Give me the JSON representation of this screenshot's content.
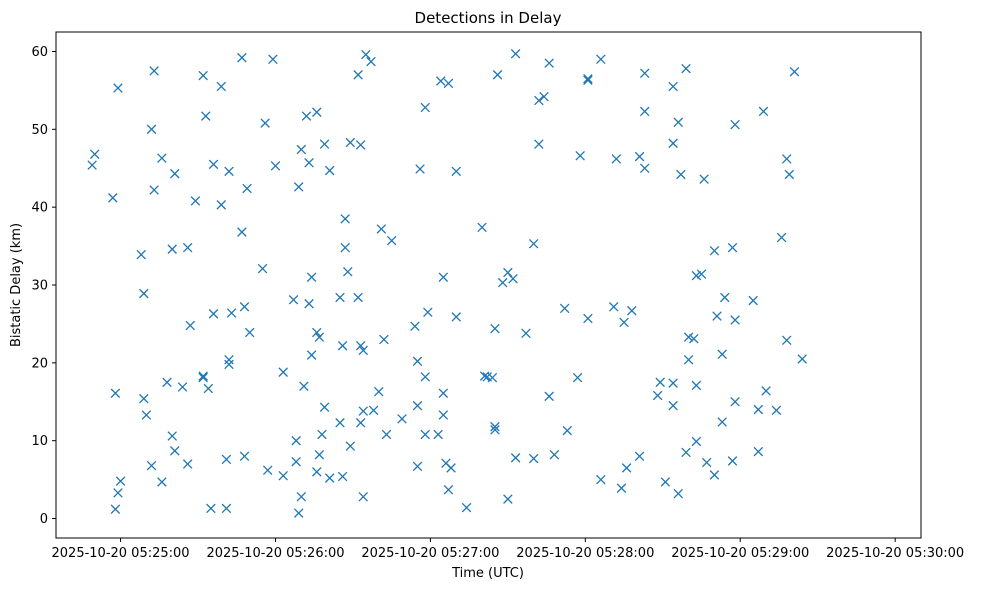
{
  "chart_data": {
    "type": "scatter",
    "title": "Detections in Delay",
    "xlabel": "Time (UTC)",
    "ylabel": "Bistatic Delay (km)",
    "x_unit": "time of day, 2025-10-20, UTC",
    "xlim": [
      "05:24:35",
      "05:30:10"
    ],
    "ylim": [
      -2.5,
      62.5
    ],
    "x_ticks": [
      {
        "t": "05:25:00",
        "label": "2025-10-20 05:25:00"
      },
      {
        "t": "05:26:00",
        "label": "2025-10-20 05:26:00"
      },
      {
        "t": "05:27:00",
        "label": "2025-10-20 05:27:00"
      },
      {
        "t": "05:28:00",
        "label": "2025-10-20 05:28:00"
      },
      {
        "t": "05:29:00",
        "label": "2025-10-20 05:29:00"
      },
      {
        "t": "05:30:00",
        "label": "2025-10-20 05:30:00"
      }
    ],
    "y_ticks": [
      0,
      10,
      20,
      30,
      40,
      50,
      60
    ],
    "grid": false,
    "marker": "x",
    "color": "#1f77b4",
    "points": [
      [
        "05:24:49",
        45.4
      ],
      [
        "05:24:50",
        46.8
      ],
      [
        "05:24:57",
        41.2
      ],
      [
        "05:24:58",
        16.1
      ],
      [
        "05:24:58",
        1.2
      ],
      [
        "05:24:59",
        3.3
      ],
      [
        "05:24:59",
        55.3
      ],
      [
        "05:25:00",
        4.8
      ],
      [
        "05:25:08",
        33.9
      ],
      [
        "05:25:09",
        28.9
      ],
      [
        "05:25:09",
        15.4
      ],
      [
        "05:25:10",
        13.3
      ],
      [
        "05:25:12",
        6.8
      ],
      [
        "05:25:12",
        50.0
      ],
      [
        "05:25:13",
        57.5
      ],
      [
        "05:25:13",
        42.2
      ],
      [
        "05:25:16",
        4.7
      ],
      [
        "05:25:16",
        46.3
      ],
      [
        "05:25:18",
        17.5
      ],
      [
        "05:25:20",
        10.6
      ],
      [
        "05:25:20",
        34.6
      ],
      [
        "05:25:21",
        8.7
      ],
      [
        "05:25:21",
        44.3
      ],
      [
        "05:25:24",
        16.9
      ],
      [
        "05:25:26",
        34.8
      ],
      [
        "05:25:26",
        7.0
      ],
      [
        "05:25:27",
        24.8
      ],
      [
        "05:25:29",
        40.8
      ],
      [
        "05:25:32",
        18.1
      ],
      [
        "05:25:32",
        18.3
      ],
      [
        "05:25:32",
        56.9
      ],
      [
        "05:25:33",
        51.7
      ],
      [
        "05:25:34",
        16.7
      ],
      [
        "05:25:35",
        1.3
      ],
      [
        "05:25:36",
        26.3
      ],
      [
        "05:25:36",
        45.5
      ],
      [
        "05:25:39",
        55.5
      ],
      [
        "05:25:39",
        40.3
      ],
      [
        "05:25:41",
        7.6
      ],
      [
        "05:25:41",
        1.3
      ],
      [
        "05:25:42",
        20.4
      ],
      [
        "05:25:42",
        19.8
      ],
      [
        "05:25:42",
        44.6
      ],
      [
        "05:25:43",
        26.4
      ],
      [
        "05:25:47",
        59.2
      ],
      [
        "05:25:47",
        36.8
      ],
      [
        "05:25:48",
        27.2
      ],
      [
        "05:25:48",
        8.0
      ],
      [
        "05:25:49",
        42.4
      ],
      [
        "05:25:50",
        23.9
      ],
      [
        "05:25:55",
        32.1
      ],
      [
        "05:25:56",
        50.8
      ],
      [
        "05:25:57",
        6.2
      ],
      [
        "05:25:59",
        59.0
      ],
      [
        "05:26:00",
        45.3
      ],
      [
        "05:26:03",
        5.5
      ],
      [
        "05:26:03",
        18.8
      ],
      [
        "05:26:07",
        28.1
      ],
      [
        "05:26:08",
        7.3
      ],
      [
        "05:26:08",
        10.0
      ],
      [
        "05:26:09",
        42.6
      ],
      [
        "05:26:09",
        0.7
      ],
      [
        "05:26:10",
        47.4
      ],
      [
        "05:26:10",
        2.8
      ],
      [
        "05:26:11",
        17.0
      ],
      [
        "05:26:12",
        51.7
      ],
      [
        "05:26:13",
        45.7
      ],
      [
        "05:26:13",
        27.6
      ],
      [
        "05:26:14",
        21.0
      ],
      [
        "05:26:14",
        31.0
      ],
      [
        "05:26:16",
        52.2
      ],
      [
        "05:26:16",
        6.0
      ],
      [
        "05:26:16",
        23.9
      ],
      [
        "05:26:17",
        8.2
      ],
      [
        "05:26:17",
        23.3
      ],
      [
        "05:26:18",
        10.8
      ],
      [
        "05:26:19",
        48.1
      ],
      [
        "05:26:19",
        14.3
      ],
      [
        "05:26:21",
        5.2
      ],
      [
        "05:26:21",
        44.7
      ],
      [
        "05:26:25",
        28.4
      ],
      [
        "05:26:25",
        12.3
      ],
      [
        "05:26:26",
        5.4
      ],
      [
        "05:26:26",
        22.2
      ],
      [
        "05:26:27",
        38.5
      ],
      [
        "05:26:27",
        34.8
      ],
      [
        "05:26:28",
        31.7
      ],
      [
        "05:26:29",
        48.3
      ],
      [
        "05:26:29",
        9.3
      ],
      [
        "05:26:32",
        28.4
      ],
      [
        "05:26:32",
        57.0
      ],
      [
        "05:26:33",
        48.0
      ],
      [
        "05:26:33",
        12.3
      ],
      [
        "05:26:33",
        22.2
      ],
      [
        "05:26:34",
        21.6
      ],
      [
        "05:26:34",
        2.8
      ],
      [
        "05:26:34",
        13.8
      ],
      [
        "05:26:35",
        59.6
      ],
      [
        "05:26:37",
        58.7
      ],
      [
        "05:26:38",
        13.9
      ],
      [
        "05:26:40",
        16.3
      ],
      [
        "05:26:41",
        37.2
      ],
      [
        "05:26:42",
        23.0
      ],
      [
        "05:26:43",
        10.8
      ],
      [
        "05:26:45",
        35.7
      ],
      [
        "05:26:49",
        12.8
      ],
      [
        "05:26:54",
        24.7
      ],
      [
        "05:26:55",
        6.7
      ],
      [
        "05:26:55",
        14.5
      ],
      [
        "05:26:55",
        20.2
      ],
      [
        "05:26:56",
        44.9
      ],
      [
        "05:26:58",
        18.2
      ],
      [
        "05:26:58",
        52.8
      ],
      [
        "05:26:58",
        10.8
      ],
      [
        "05:26:59",
        26.5
      ],
      [
        "05:27:03",
        10.8
      ],
      [
        "05:27:04",
        56.2
      ],
      [
        "05:27:05",
        31.0
      ],
      [
        "05:27:05",
        13.3
      ],
      [
        "05:27:05",
        16.1
      ],
      [
        "05:27:06",
        7.1
      ],
      [
        "05:27:07",
        3.7
      ],
      [
        "05:27:07",
        55.9
      ],
      [
        "05:27:08",
        6.5
      ],
      [
        "05:27:10",
        25.9
      ],
      [
        "05:27:10",
        44.6
      ],
      [
        "05:27:14",
        1.4
      ],
      [
        "05:27:20",
        37.4
      ],
      [
        "05:27:21",
        18.3
      ],
      [
        "05:27:22",
        18.2
      ],
      [
        "05:27:24",
        18.1
      ],
      [
        "05:27:25",
        11.4
      ],
      [
        "05:27:25",
        11.8
      ],
      [
        "05:27:25",
        24.4
      ],
      [
        "05:27:26",
        57.0
      ],
      [
        "05:27:28",
        30.3
      ],
      [
        "05:27:30",
        31.6
      ],
      [
        "05:27:30",
        2.5
      ],
      [
        "05:27:32",
        30.8
      ],
      [
        "05:27:33",
        59.7
      ],
      [
        "05:27:33",
        7.8
      ],
      [
        "05:27:37",
        23.8
      ],
      [
        "05:27:40",
        35.3
      ],
      [
        "05:27:40",
        7.7
      ],
      [
        "05:27:42",
        48.1
      ],
      [
        "05:27:42",
        53.7
      ],
      [
        "05:27:44",
        54.2
      ],
      [
        "05:27:46",
        58.5
      ],
      [
        "05:27:46",
        15.7
      ],
      [
        "05:27:48",
        8.2
      ],
      [
        "05:27:52",
        27.0
      ],
      [
        "05:27:53",
        11.3
      ],
      [
        "05:27:57",
        18.1
      ],
      [
        "05:27:58",
        46.6
      ],
      [
        "05:28:01",
        56.5
      ],
      [
        "05:28:01",
        56.3
      ],
      [
        "05:28:01",
        25.7
      ],
      [
        "05:28:06",
        59.0
      ],
      [
        "05:28:06",
        5.0
      ],
      [
        "05:28:11",
        27.2
      ],
      [
        "05:28:12",
        46.2
      ],
      [
        "05:28:14",
        3.9
      ],
      [
        "05:28:15",
        25.2
      ],
      [
        "05:28:16",
        6.5
      ],
      [
        "05:28:18",
        26.7
      ],
      [
        "05:28:21",
        8.0
      ],
      [
        "05:28:21",
        46.5
      ],
      [
        "05:28:23",
        45.0
      ],
      [
        "05:28:23",
        57.2
      ],
      [
        "05:28:23",
        52.3
      ],
      [
        "05:28:28",
        15.8
      ],
      [
        "05:28:29",
        17.5
      ],
      [
        "05:28:31",
        4.7
      ],
      [
        "05:28:34",
        55.5
      ],
      [
        "05:28:34",
        48.2
      ],
      [
        "05:28:34",
        14.5
      ],
      [
        "05:28:34",
        17.4
      ],
      [
        "05:28:36",
        50.9
      ],
      [
        "05:28:36",
        3.2
      ],
      [
        "05:28:37",
        44.2
      ],
      [
        "05:28:39",
        57.8
      ],
      [
        "05:28:39",
        8.5
      ],
      [
        "05:28:40",
        20.4
      ],
      [
        "05:28:40",
        23.3
      ],
      [
        "05:28:42",
        23.1
      ],
      [
        "05:28:43",
        31.2
      ],
      [
        "05:28:43",
        9.9
      ],
      [
        "05:28:43",
        17.1
      ],
      [
        "05:28:45",
        31.4
      ],
      [
        "05:28:46",
        43.6
      ],
      [
        "05:28:47",
        7.2
      ],
      [
        "05:28:50",
        5.6
      ],
      [
        "05:28:50",
        34.4
      ],
      [
        "05:28:51",
        26.0
      ],
      [
        "05:28:53",
        12.4
      ],
      [
        "05:28:53",
        21.1
      ],
      [
        "05:28:54",
        28.4
      ],
      [
        "05:28:57",
        34.8
      ],
      [
        "05:28:57",
        7.4
      ],
      [
        "05:28:58",
        15.0
      ],
      [
        "05:28:58",
        50.6
      ],
      [
        "05:28:58",
        25.5
      ],
      [
        "05:29:05",
        28.0
      ],
      [
        "05:29:07",
        14.0
      ],
      [
        "05:29:07",
        8.6
      ],
      [
        "05:29:09",
        52.3
      ],
      [
        "05:29:10",
        16.4
      ],
      [
        "05:29:14",
        13.9
      ],
      [
        "05:29:16",
        36.1
      ],
      [
        "05:29:18",
        46.2
      ],
      [
        "05:29:18",
        22.9
      ],
      [
        "05:29:19",
        44.2
      ],
      [
        "05:29:21",
        57.4
      ],
      [
        "05:29:24",
        20.5
      ]
    ]
  }
}
